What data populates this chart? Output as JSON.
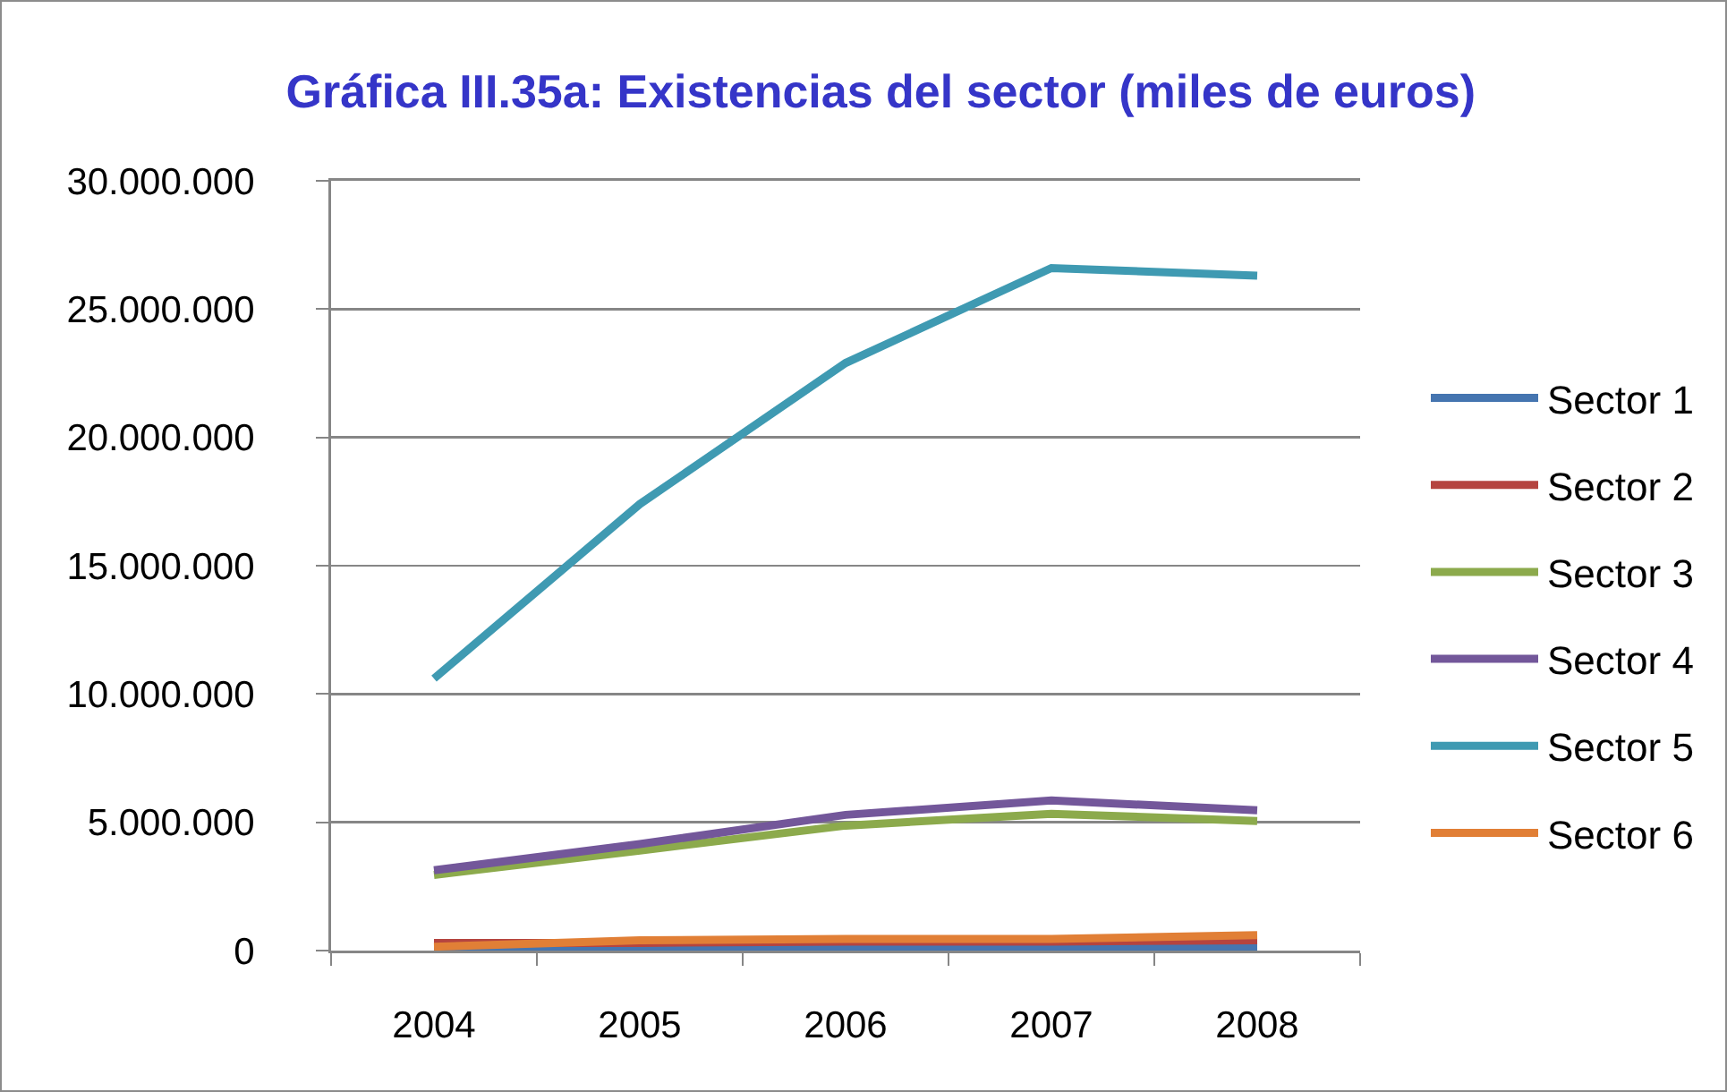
{
  "chart_data": {
    "type": "line",
    "title": "Gráfica III.35a: Existencias del sector (miles de euros)",
    "categories": [
      "2004",
      "2005",
      "2006",
      "2007",
      "2008"
    ],
    "series": [
      {
        "name": "Sector 1",
        "color": "#4575b0",
        "values": [
          30000,
          60000,
          60000,
          70000,
          150000
        ]
      },
      {
        "name": "Sector 2",
        "color": "#b5443f",
        "values": [
          300000,
          300000,
          350000,
          350000,
          400000
        ]
      },
      {
        "name": "Sector 3",
        "color": "#8caa4c",
        "values": [
          2950000,
          3900000,
          4870000,
          5330000,
          5050000
        ]
      },
      {
        "name": "Sector 4",
        "color": "#73579a",
        "values": [
          3130000,
          4150000,
          5290000,
          5850000,
          5470000
        ]
      },
      {
        "name": "Sector 5",
        "color": "#3f9ab2",
        "values": [
          10600000,
          17400000,
          22900000,
          26600000,
          26300000
        ]
      },
      {
        "name": "Sector 6",
        "color": "#e17f36",
        "values": [
          150000,
          400000,
          450000,
          450000,
          600000
        ]
      }
    ],
    "ylim": [
      0,
      30000000
    ],
    "yticks": [
      0,
      {
        "value": 5000000,
        "label": "5.000.000"
      },
      {
        "value": 10000000,
        "label": "10.000.000"
      },
      {
        "value": 15000000,
        "label": "15.000.000"
      },
      {
        "value": 20000000,
        "label": "20.000.000"
      },
      {
        "value": 25000000,
        "label": "25.000.000"
      },
      {
        "value": 30000000,
        "label": "30.000.000"
      }
    ],
    "grid": "y",
    "legend": "right",
    "line_style": "solid"
  }
}
